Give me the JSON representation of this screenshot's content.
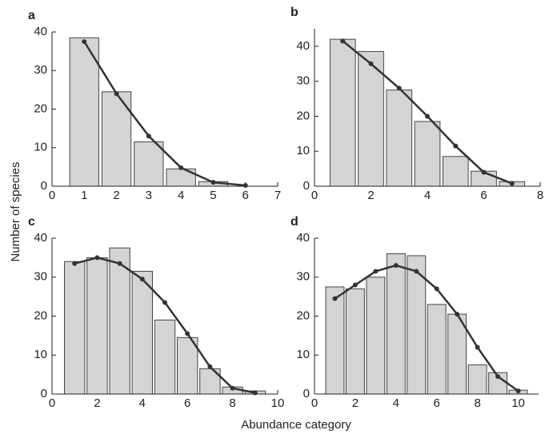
{
  "xlabel": "Abundance category",
  "ylabel": "Number of species",
  "chart_data": [
    {
      "type": "bar",
      "title": "a",
      "xlim": [
        0,
        7
      ],
      "xticks": [
        0,
        1,
        2,
        3,
        4,
        5,
        6,
        7
      ],
      "ylim": [
        0,
        40
      ],
      "yticks": [
        0,
        10,
        20,
        30,
        40
      ],
      "bars": {
        "color": "#d4d4d4",
        "x": [
          1,
          2,
          3,
          4,
          5
        ],
        "values": [
          38.5,
          24.5,
          11.5,
          4.5,
          1.2
        ]
      },
      "curve": {
        "color": "#333333",
        "x": [
          1,
          2,
          3,
          4,
          5,
          6
        ],
        "values": [
          37.5,
          24,
          13,
          4.8,
          1,
          0.2
        ]
      }
    },
    {
      "type": "bar",
      "title": "b",
      "xlim": [
        0,
        8
      ],
      "xticks": [
        0,
        2,
        4,
        6,
        8
      ],
      "ylim": [
        0,
        45
      ],
      "yticks": [
        0,
        10,
        20,
        30,
        40
      ],
      "bars": {
        "color": "#d4d4d4",
        "x": [
          1,
          2,
          3,
          4,
          5,
          6,
          7
        ],
        "values": [
          42,
          38.5,
          27.5,
          18.5,
          8.5,
          4.3,
          1.3
        ]
      },
      "curve": {
        "color": "#333333",
        "x": [
          1,
          2,
          3,
          4,
          5,
          6,
          7
        ],
        "values": [
          41.5,
          35,
          28,
          20,
          11.5,
          4,
          0.8
        ]
      }
    },
    {
      "type": "bar",
      "title": "c",
      "xlim": [
        0,
        10
      ],
      "xticks": [
        0,
        2,
        4,
        6,
        8,
        10
      ],
      "ylim": [
        0,
        40
      ],
      "yticks": [
        0,
        10,
        20,
        30,
        40
      ],
      "bars": {
        "color": "#d4d4d4",
        "x": [
          1,
          2,
          3,
          4,
          5,
          6,
          7,
          8,
          9
        ],
        "values": [
          34,
          35,
          37.5,
          31.5,
          19,
          14.5,
          6.5,
          1.8,
          0.8
        ]
      },
      "curve": {
        "color": "#333333",
        "x": [
          1,
          2,
          3,
          4,
          5,
          6,
          7,
          8,
          9
        ],
        "values": [
          33.5,
          35,
          33.5,
          29.5,
          23.5,
          15.5,
          7,
          1.5,
          0.3
        ]
      }
    },
    {
      "type": "bar",
      "title": "d",
      "xlim": [
        0,
        11
      ],
      "xticks": [
        0,
        2,
        4,
        6,
        8,
        10
      ],
      "ylim": [
        0,
        40
      ],
      "yticks": [
        0,
        10,
        20,
        30,
        40
      ],
      "bars": {
        "color": "#d4d4d4",
        "x": [
          1,
          2,
          3,
          4,
          5,
          6,
          7,
          8,
          9,
          10
        ],
        "values": [
          27.5,
          27,
          30,
          36,
          35.5,
          23,
          20.5,
          7.5,
          5.5,
          1
        ]
      },
      "curve": {
        "color": "#333333",
        "x": [
          1,
          2,
          3,
          4,
          5,
          6,
          7,
          8,
          9,
          10
        ],
        "values": [
          24.5,
          28,
          31.5,
          33,
          31.5,
          27,
          20.5,
          12,
          4.5,
          0.8
        ]
      }
    }
  ]
}
